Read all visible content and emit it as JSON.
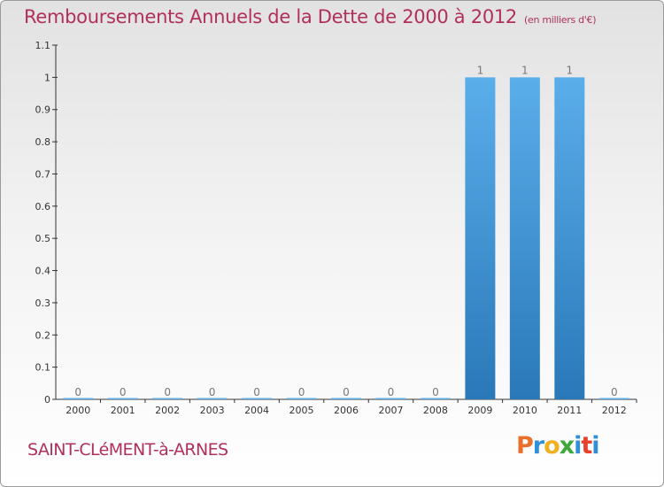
{
  "header": {
    "title": "Remboursements Annuels de la Dette de 2000 à 2012",
    "subtitle": "(en milliers d'€)"
  },
  "footer": {
    "commune": "SAINT-CLéMENT-à-ARNES",
    "logo_letters": [
      "P",
      "r",
      "o",
      "x",
      "i",
      "t",
      "i"
    ],
    "logo_colors": [
      "#e8702a",
      "#2f8fd8",
      "#f0b020",
      "#3ea83a",
      "#2f8fd8",
      "#e8402a",
      "#2f8fd8"
    ]
  },
  "chart_data": {
    "type": "bar",
    "title": "Remboursements Annuels de la Dette de 2000 à 2012",
    "categories": [
      "2000",
      "2001",
      "2002",
      "2003",
      "2004",
      "2005",
      "2006",
      "2007",
      "2008",
      "2009",
      "2010",
      "2011",
      "2012"
    ],
    "values": [
      0,
      0,
      0,
      0,
      0,
      0,
      0,
      0,
      0,
      1,
      1,
      1,
      0
    ],
    "data_labels": [
      "0",
      "0",
      "0",
      "0",
      "0",
      "0",
      "0",
      "0",
      "0",
      "1",
      "1",
      "1",
      "0"
    ],
    "ylim": [
      0,
      1.1
    ],
    "yticks": [
      0,
      0.1,
      0.2,
      0.3,
      0.4,
      0.5,
      0.6,
      0.7,
      0.8,
      0.9,
      1,
      1.1
    ],
    "ytick_labels": [
      "0",
      "0.1",
      "0.2",
      "0.3",
      "0.4",
      "0.5",
      "0.6",
      "0.7",
      "0.8",
      "0.9",
      "1",
      "1.1"
    ],
    "grid": false,
    "bar_color_top": "#5aaeea",
    "bar_color_bottom": "#2a78b8"
  }
}
